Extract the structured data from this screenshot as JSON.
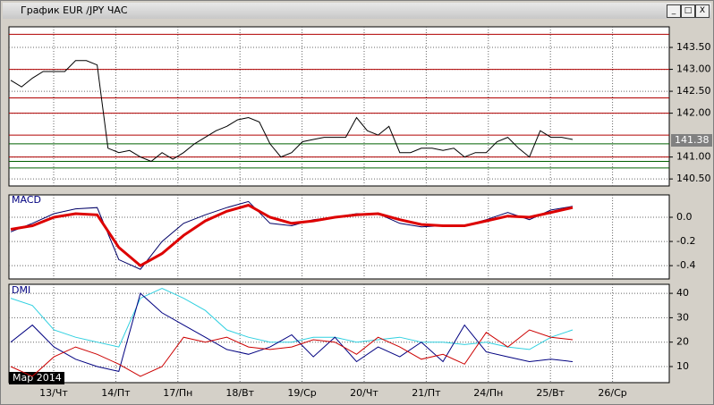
{
  "window": {
    "title": "График EUR /JPY  ЧАС"
  },
  "x_axis": {
    "labels": [
      "13/Чт",
      "14/Пт",
      "17/Пн",
      "18/Вт",
      "19/Ср",
      "20/Чт",
      "21/Пт",
      "24/Пн",
      "25/Вт",
      "26/Ср"
    ],
    "period": "Мар 2014"
  },
  "chart_data": [
    {
      "type": "line",
      "values": [
        142.75,
        142.6,
        142.8,
        142.95,
        142.95,
        142.95,
        143.2,
        143.2,
        143.1,
        141.2,
        141.1,
        141.15,
        141.0,
        140.9,
        141.1,
        140.95,
        141.1,
        141.3,
        141.45,
        141.6,
        141.7,
        141.85,
        141.9,
        141.8,
        141.3,
        141.0,
        141.1,
        141.35,
        141.4,
        141.45,
        141.45,
        141.45,
        141.9,
        141.6,
        141.5,
        141.7,
        141.1,
        141.1,
        141.2,
        141.2,
        141.15,
        141.2,
        141.0,
        141.1,
        141.1,
        141.35,
        141.45,
        141.2,
        141.0,
        141.6,
        141.45,
        141.45,
        141.4
      ],
      "color": "#000000",
      "ylim": [
        140.34,
        143.97
      ],
      "yticks": [
        {
          "value": 140.5,
          "label": "140.50"
        },
        {
          "value": 141,
          "label": "141.00"
        },
        {
          "value": 142,
          "label": "142.00"
        },
        {
          "value": 142.5,
          "label": "142.50"
        },
        {
          "value": 143,
          "label": "143.00"
        },
        {
          "value": 143.5,
          "label": "143.50"
        }
      ],
      "levels": [
        143.8,
        143.0,
        142.35,
        142.0,
        141.5,
        141.3,
        141.0,
        140.9,
        140.75
      ],
      "level_colors": [
        "#b00000",
        "#b00000",
        "#b00000",
        "#b00000",
        "#b00000",
        "#006000",
        "#b00000",
        "#006000",
        "#006000"
      ],
      "last_price": 141.38
    },
    {
      "type": "line",
      "title": "MACD",
      "series": [
        {
          "color": "#000066",
          "values": [
            -0.12,
            -0.05,
            0.03,
            0.07,
            0.08,
            -0.35,
            -0.43,
            -0.2,
            -0.05,
            0.02,
            0.08,
            0.13,
            -0.05,
            -0.07,
            -0.02,
            0.0,
            0.03,
            0.03,
            -0.05,
            -0.08,
            -0.07,
            -0.07,
            -0.02,
            0.04,
            -0.02,
            0.06,
            0.09
          ]
        },
        {
          "color": "#dd0000",
          "values": [
            -0.1,
            -0.07,
            0.0,
            0.03,
            0.02,
            -0.25,
            -0.4,
            -0.3,
            -0.15,
            -0.03,
            0.05,
            0.1,
            0.0,
            -0.05,
            -0.03,
            0.0,
            0.02,
            0.03,
            -0.02,
            -0.06,
            -0.07,
            -0.07,
            -0.03,
            0.01,
            0.0,
            0.04,
            0.08
          ]
        }
      ],
      "ylim": [
        -0.51,
        0.185
      ],
      "yticks": [
        -0.4,
        -0.2,
        {
          "value": 0,
          "label": "0.0"
        }
      ]
    },
    {
      "type": "line",
      "title": "DMI",
      "series": [
        {
          "color": "#30d0e0",
          "values": [
            38,
            35,
            25,
            22,
            20,
            18,
            38,
            42,
            38,
            33,
            25,
            22,
            20,
            20,
            22,
            22,
            20,
            21,
            22,
            20,
            20,
            19,
            20,
            18,
            17,
            22,
            25
          ]
        },
        {
          "color": "#000080",
          "values": [
            20,
            27,
            18,
            13,
            10,
            8,
            40,
            32,
            27,
            22,
            17,
            15,
            18,
            23,
            14,
            22,
            12,
            18,
            14,
            20,
            12,
            27,
            16,
            14,
            12,
            13,
            12
          ]
        },
        {
          "color": "#cc0000",
          "values": [
            10,
            6,
            14,
            18,
            15,
            11,
            6,
            10,
            22,
            20,
            22,
            18,
            17,
            18,
            21,
            20,
            15,
            22,
            18,
            13,
            15,
            11,
            24,
            18,
            25,
            22,
            21
          ]
        }
      ],
      "ylim": [
        3.4,
        43.7
      ],
      "yticks": [
        10,
        20,
        30,
        40
      ]
    }
  ]
}
